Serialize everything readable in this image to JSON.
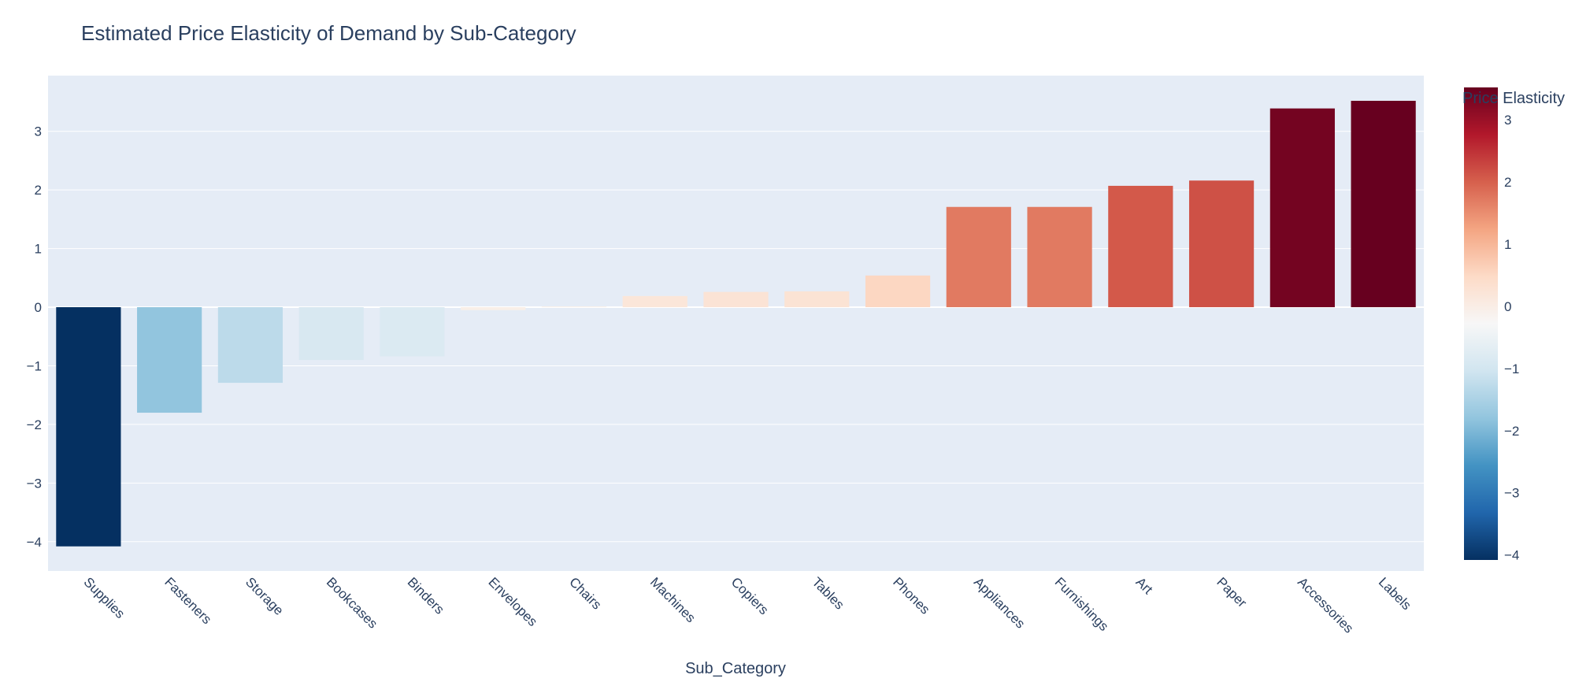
{
  "chart_data": {
    "type": "bar",
    "title": "Estimated Price Elasticity of Demand by Sub-Category",
    "xlabel": "Sub_Category",
    "ylabel": "",
    "categories": [
      "Supplies",
      "Fasteners",
      "Storage",
      "Bookcases",
      "Binders",
      "Envelopes",
      "Chairs",
      "Machines",
      "Copiers",
      "Tables",
      "Phones",
      "Appliances",
      "Furnishings",
      "Art",
      "Paper",
      "Accessories",
      "Labels"
    ],
    "values": [
      -4.08,
      -1.8,
      -1.29,
      -0.9,
      -0.84,
      -0.05,
      0.01,
      0.19,
      0.26,
      0.27,
      0.54,
      1.71,
      1.71,
      2.07,
      2.16,
      3.39,
      3.52
    ],
    "ylim": [
      -4.5,
      3.95
    ],
    "yticks": [
      -4,
      -3,
      -2,
      -1,
      0,
      1,
      2,
      3
    ],
    "grid": true,
    "colorbar": {
      "title": "Price Elasticity",
      "range": [
        -4.08,
        3.52
      ],
      "ticks": [
        -4,
        -3,
        -2,
        -1,
        0,
        1,
        2,
        3
      ],
      "colorscale": "RdBu_r"
    }
  },
  "colors": {
    "plot_background": "#e5ecf6",
    "grid": "#ffffff",
    "text": "#2a3f5f"
  }
}
